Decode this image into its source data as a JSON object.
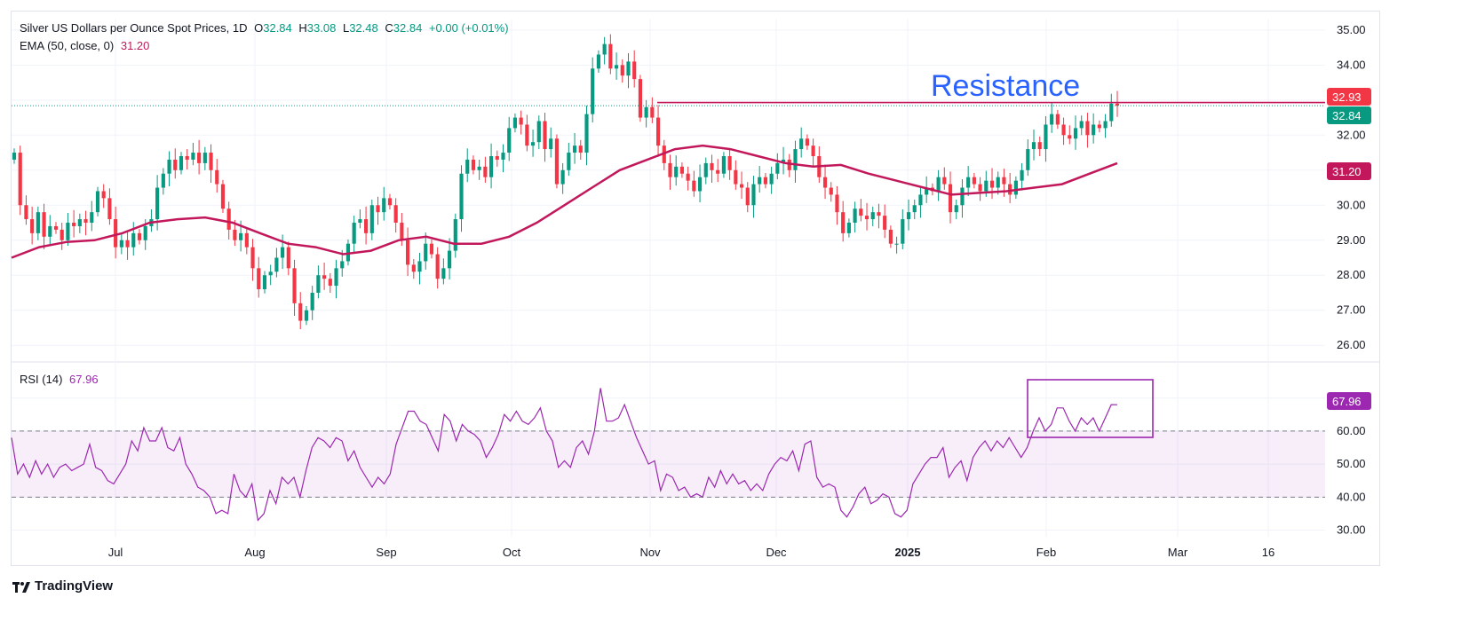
{
  "header": {
    "symbol": "Silver US Dollars per Ounce Spot Prices, 1D",
    "o_label": "O",
    "o_val": "32.84",
    "h_label": "H",
    "h_val": "33.08",
    "l_label": "L",
    "l_val": "32.48",
    "c_label": "C",
    "c_val": "32.84",
    "change": "+0.00 (+0.01%)",
    "ema_label": "EMA (50, close, 0)",
    "ema_val": "31.20",
    "rsi_label": "RSI (14)",
    "rsi_val": "67.96"
  },
  "annotation": "Resistance",
  "footer": {
    "brand": "TradingView"
  },
  "colors": {
    "up": "#089981",
    "down": "#f23645",
    "ema": "#c2185b",
    "rsi": "#9c27b0",
    "resistance": "#c2185b",
    "box": "#9c27b0",
    "annotation": "#2962ff"
  },
  "chart_data": [
    {
      "type": "candlestick",
      "title": "Silver US Dollars per Ounce Spot Prices, 1D",
      "ylim": [
        25.6,
        35.3
      ],
      "y_ticks": [
        "35.00",
        "34.00",
        "33.00",
        "32.00",
        "31.00",
        "30.00",
        "29.00",
        "28.00",
        "27.00",
        "26.00"
      ],
      "x_ticks": [
        "Jul",
        "Aug",
        "Sep",
        "Oct",
        "Nov",
        "Dec",
        "2025",
        "Feb",
        "Mar",
        "16"
      ],
      "resistance": 32.93,
      "price_tags": [
        {
          "value": 32.93,
          "label": "32.93",
          "color": "#f23645"
        },
        {
          "value": 32.84,
          "label": "32.84",
          "color": "#089981"
        },
        {
          "value": 31.2,
          "label": "31.20",
          "color": "#c2185b"
        }
      ],
      "closes": [
        31.5,
        30.0,
        29.6,
        29.2,
        29.8,
        29.1,
        29.4,
        29.3,
        29.0,
        29.5,
        29.4,
        29.6,
        29.5,
        29.8,
        30.4,
        30.2,
        29.6,
        28.8,
        29.0,
        28.8,
        29.2,
        29.0,
        29.4,
        29.6,
        30.5,
        30.9,
        31.3,
        31.0,
        31.4,
        31.3,
        31.5,
        31.2,
        31.5,
        31.0,
        30.6,
        29.9,
        29.3,
        29.0,
        29.2,
        28.8,
        28.2,
        27.6,
        28.0,
        28.1,
        28.5,
        28.8,
        28.2,
        27.2,
        26.7,
        27.0,
        27.5,
        28.0,
        27.9,
        27.7,
        28.2,
        28.4,
        28.9,
        29.5,
        29.6,
        29.2,
        30.0,
        29.8,
        30.2,
        30.0,
        29.5,
        29.0,
        28.3,
        28.1,
        28.4,
        28.9,
        28.6,
        27.9,
        28.2,
        28.7,
        29.6,
        30.9,
        31.3,
        31.0,
        31.1,
        30.8,
        31.4,
        31.3,
        31.5,
        32.2,
        32.5,
        32.3,
        31.7,
        31.8,
        32.4,
        31.6,
        31.9,
        30.6,
        31.0,
        31.5,
        31.7,
        31.5,
        32.6,
        33.9,
        34.3,
        34.6,
        33.9,
        34.0,
        33.7,
        34.1,
        33.6,
        32.5,
        32.8,
        32.5,
        31.7,
        31.2,
        30.8,
        31.1,
        30.9,
        30.7,
        30.4,
        30.8,
        31.2,
        31.0,
        30.9,
        31.4,
        31.0,
        30.6,
        30.5,
        30.0,
        30.6,
        30.8,
        30.6,
        30.9,
        31.2,
        31.3,
        31.0,
        31.6,
        31.9,
        31.7,
        31.4,
        30.8,
        30.5,
        30.3,
        29.8,
        29.2,
        29.5,
        29.9,
        29.7,
        29.6,
        29.8,
        29.7,
        29.3,
        28.9,
        28.9,
        29.6,
        29.8,
        30.0,
        30.3,
        30.5,
        30.4,
        30.8,
        30.6,
        29.8,
        30.0,
        30.5,
        30.8,
        30.6,
        30.4,
        30.7,
        30.5,
        30.8,
        30.6,
        30.3,
        30.7,
        31.0,
        31.6,
        31.8,
        31.6,
        32.3,
        32.6,
        32.3,
        32.0,
        31.9,
        32.2,
        32.4,
        32.0,
        32.3,
        32.2,
        32.4,
        32.9,
        32.84
      ],
      "ema_values": [
        28.5,
        28.8,
        28.95,
        29.0,
        29.2,
        29.5,
        29.6,
        29.65,
        29.5,
        29.2,
        28.9,
        28.8,
        28.6,
        28.7,
        29.0,
        29.1,
        28.9,
        28.9,
        29.1,
        29.5,
        30.0,
        30.5,
        31.0,
        31.3,
        31.6,
        31.7,
        31.6,
        31.4,
        31.2,
        31.1,
        31.15,
        30.9,
        30.7,
        30.5,
        30.3,
        30.35,
        30.4,
        30.5,
        30.6,
        30.9,
        31.2
      ]
    },
    {
      "type": "line",
      "title": "RSI (14)",
      "ylim": [
        28,
        75
      ],
      "y_ticks": [
        "70.00",
        "60.00",
        "50.00",
        "40.00",
        "30.00"
      ],
      "band": [
        40,
        60
      ],
      "value_tag": "67.96",
      "values": [
        58,
        47,
        50,
        46,
        51,
        47,
        50,
        46,
        49,
        50,
        48,
        49,
        50,
        56,
        49,
        48,
        45,
        44,
        47,
        50,
        57,
        54,
        61,
        57,
        57,
        61,
        55,
        54,
        58,
        50,
        47,
        43,
        42,
        40,
        35,
        36,
        35,
        47,
        42,
        40,
        44,
        33,
        35,
        42,
        38,
        46,
        44,
        46,
        40,
        48,
        55,
        58,
        57,
        55,
        58,
        57,
        51,
        54,
        49,
        46,
        43,
        46,
        44,
        47,
        56,
        61,
        66,
        66,
        63,
        62,
        58,
        54,
        65,
        63,
        57,
        62,
        60,
        59,
        57,
        52,
        55,
        59,
        65,
        63,
        66,
        63,
        62,
        64,
        67,
        60,
        57,
        49,
        51,
        49,
        55,
        57,
        53,
        60,
        73,
        63,
        63,
        64,
        68,
        63,
        58,
        54,
        50,
        51,
        42,
        47,
        46,
        42,
        43,
        40,
        41,
        40,
        46,
        43,
        48,
        44,
        47,
        44,
        45,
        42,
        44,
        42,
        47,
        50,
        52,
        51,
        54,
        48,
        56,
        57,
        46,
        43,
        44,
        43,
        36,
        34,
        37,
        41,
        43,
        38,
        39,
        41,
        40,
        35,
        34,
        36,
        44,
        47,
        50,
        52,
        52,
        55,
        46,
        49,
        51,
        45,
        52,
        55,
        57,
        54,
        57,
        55,
        58,
        55,
        52,
        55,
        60,
        64,
        60,
        62,
        67,
        67,
        63,
        60,
        64,
        62,
        64,
        60,
        64,
        68,
        67.96
      ]
    }
  ]
}
